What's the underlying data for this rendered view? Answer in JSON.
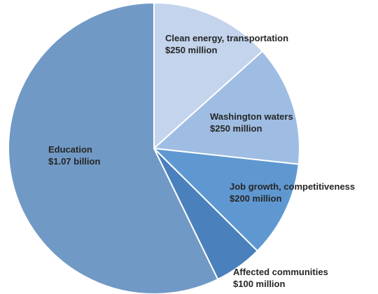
{
  "chart_data": {
    "type": "pie",
    "title": "",
    "start_angle_deg": 0,
    "direction": "clockwise",
    "slices": [
      {
        "label": "Clean energy, transportation",
        "value_label": "$250 million",
        "value": 250,
        "color": "#c3d4ec"
      },
      {
        "label": "Washington waters",
        "value_label": "$250 million",
        "value": 250,
        "color": "#9fbde2"
      },
      {
        "label": "Job growth, competitiveness",
        "value_label": "$200 million",
        "value": 200,
        "color": "#5f98d1"
      },
      {
        "label": "Affected communities",
        "value_label": "$100 million",
        "value": 100,
        "color": "#4a80bc"
      },
      {
        "label": "Education",
        "value_label": "$1.07 billion",
        "value": 1070,
        "color": "#7199c5"
      }
    ]
  }
}
